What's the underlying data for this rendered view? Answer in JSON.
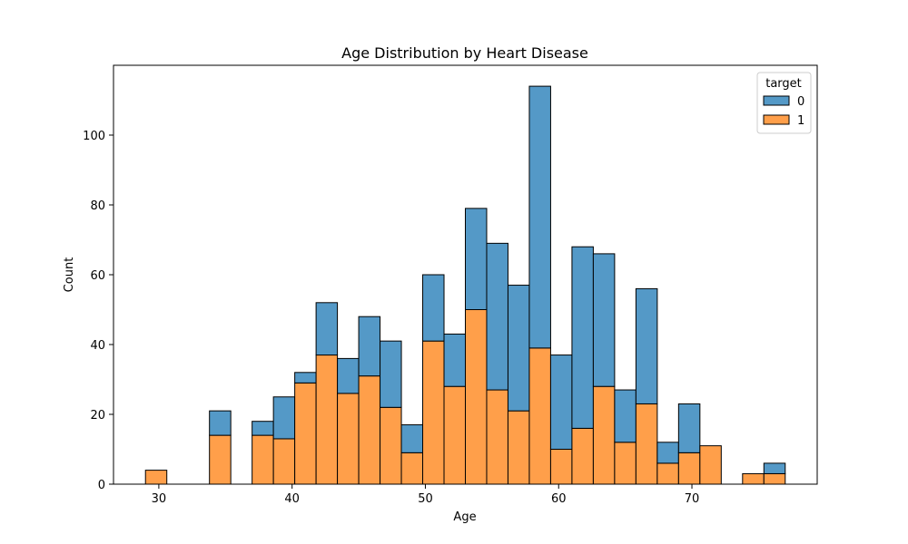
{
  "chart_data": {
    "type": "bar",
    "stacked": true,
    "title": "Age Distribution by Heart Disease",
    "xlabel": "Age",
    "ylabel": "Count",
    "xlim": [
      26.6,
      79.4
    ],
    "ylim": [
      0,
      120
    ],
    "xticks": [
      30,
      40,
      50,
      60,
      70
    ],
    "yticks": [
      0,
      20,
      40,
      60,
      80,
      100
    ],
    "bin_start": 29,
    "bin_width": 1.6,
    "legend": {
      "title": "target",
      "placement": "top-right"
    },
    "series": [
      {
        "name": "1",
        "color": "#ff9f4a",
        "values": [
          4,
          0,
          0,
          14,
          0,
          14,
          13,
          29,
          37,
          26,
          31,
          22,
          9,
          41,
          28,
          50,
          27,
          21,
          39,
          10,
          16,
          28,
          12,
          23,
          6,
          9,
          11,
          0,
          3,
          3
        ]
      },
      {
        "name": "0",
        "color": "#5499c7",
        "values": [
          0,
          0,
          0,
          7,
          0,
          4,
          12,
          3,
          15,
          10,
          17,
          19,
          8,
          19,
          15,
          29,
          42,
          36,
          75,
          27,
          52,
          38,
          15,
          33,
          6,
          14,
          0,
          0,
          0,
          3
        ]
      }
    ]
  }
}
